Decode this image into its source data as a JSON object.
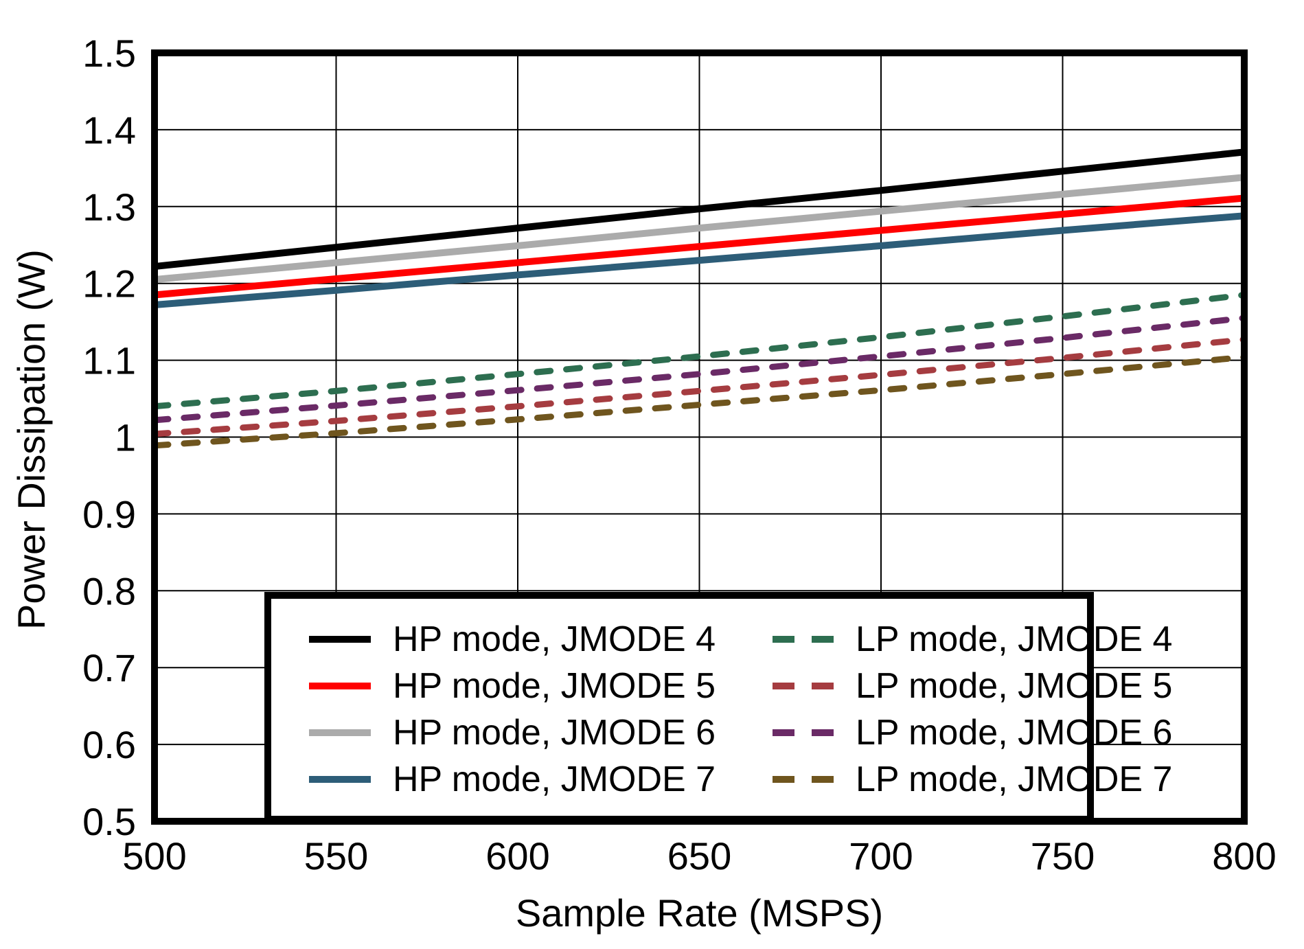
{
  "chart_data": {
    "type": "line",
    "title": "",
    "xlabel": "Sample Rate (MSPS)",
    "ylabel": "Power Dissipation (W)",
    "xlim": [
      500,
      800
    ],
    "ylim": [
      0.5,
      1.5
    ],
    "grid": true,
    "legend_position": "bottom-left-inside",
    "xticks": [
      {
        "value": 500,
        "label": "500"
      },
      {
        "value": 550,
        "label": "550"
      },
      {
        "value": 600,
        "label": "600"
      },
      {
        "value": 650,
        "label": "650"
      },
      {
        "value": 700,
        "label": "700"
      },
      {
        "value": 750,
        "label": "750"
      },
      {
        "value": 800,
        "label": "800"
      }
    ],
    "yticks": [
      {
        "value": 1.5,
        "label": "1.5"
      },
      {
        "value": 1.4,
        "label": "1.4"
      },
      {
        "value": 1.3,
        "label": "1.3"
      },
      {
        "value": 1.2,
        "label": "1.2"
      },
      {
        "value": 1.1,
        "label": "1.1"
      },
      {
        "value": 1.0,
        "label": "1"
      },
      {
        "value": 0.9,
        "label": "0.9"
      },
      {
        "value": 0.8,
        "label": "0.8"
      },
      {
        "value": 0.7,
        "label": "0.7"
      },
      {
        "value": 0.6,
        "label": "0.6"
      },
      {
        "value": 0.5,
        "label": "0.5"
      }
    ],
    "x": [
      500,
      550,
      600,
      650,
      700,
      750,
      800
    ],
    "series": [
      {
        "name": "HP mode, JMODE 4",
        "color": "#000000",
        "style": "solid",
        "values": [
          1.222,
          1.247,
          1.272,
          1.297,
          1.321,
          1.346,
          1.371
        ]
      },
      {
        "name": "HP mode, JMODE 5",
        "color": "#FF0000",
        "style": "solid",
        "values": [
          1.185,
          1.206,
          1.227,
          1.248,
          1.269,
          1.29,
          1.311
        ]
      },
      {
        "name": "HP mode, JMODE 6",
        "color": "#ABABAB",
        "style": "solid",
        "values": [
          1.205,
          1.227,
          1.249,
          1.272,
          1.294,
          1.316,
          1.338
        ]
      },
      {
        "name": "HP mode, JMODE 7",
        "color": "#2D5D78",
        "style": "solid",
        "values": [
          1.172,
          1.191,
          1.211,
          1.23,
          1.249,
          1.269,
          1.288
        ]
      },
      {
        "name": "LP mode, JMODE 4",
        "color": "#2D6E50",
        "style": "dashed",
        "values": [
          1.04,
          1.06,
          1.082,
          1.105,
          1.13,
          1.157,
          1.185
        ]
      },
      {
        "name": "LP mode, JMODE 5",
        "color": "#A53C40",
        "style": "dashed",
        "values": [
          1.004,
          1.021,
          1.04,
          1.06,
          1.081,
          1.103,
          1.127
        ]
      },
      {
        "name": "LP mode, JMODE 6",
        "color": "#6A2A66",
        "style": "dashed",
        "values": [
          1.022,
          1.041,
          1.061,
          1.082,
          1.105,
          1.129,
          1.155
        ]
      },
      {
        "name": "LP mode, JMODE 7",
        "color": "#6F551E",
        "style": "dashed",
        "values": [
          0.989,
          1.005,
          1.023,
          1.042,
          1.061,
          1.082,
          1.104
        ]
      }
    ]
  },
  "legend": {
    "order": [
      "HP mode, JMODE 4",
      "HP mode, JMODE 5",
      "HP mode, JMODE 6",
      "HP mode, JMODE 7",
      "LP mode, JMODE 4",
      "LP mode, JMODE 5",
      "LP mode, JMODE 6",
      "LP mode, JMODE 7"
    ]
  }
}
